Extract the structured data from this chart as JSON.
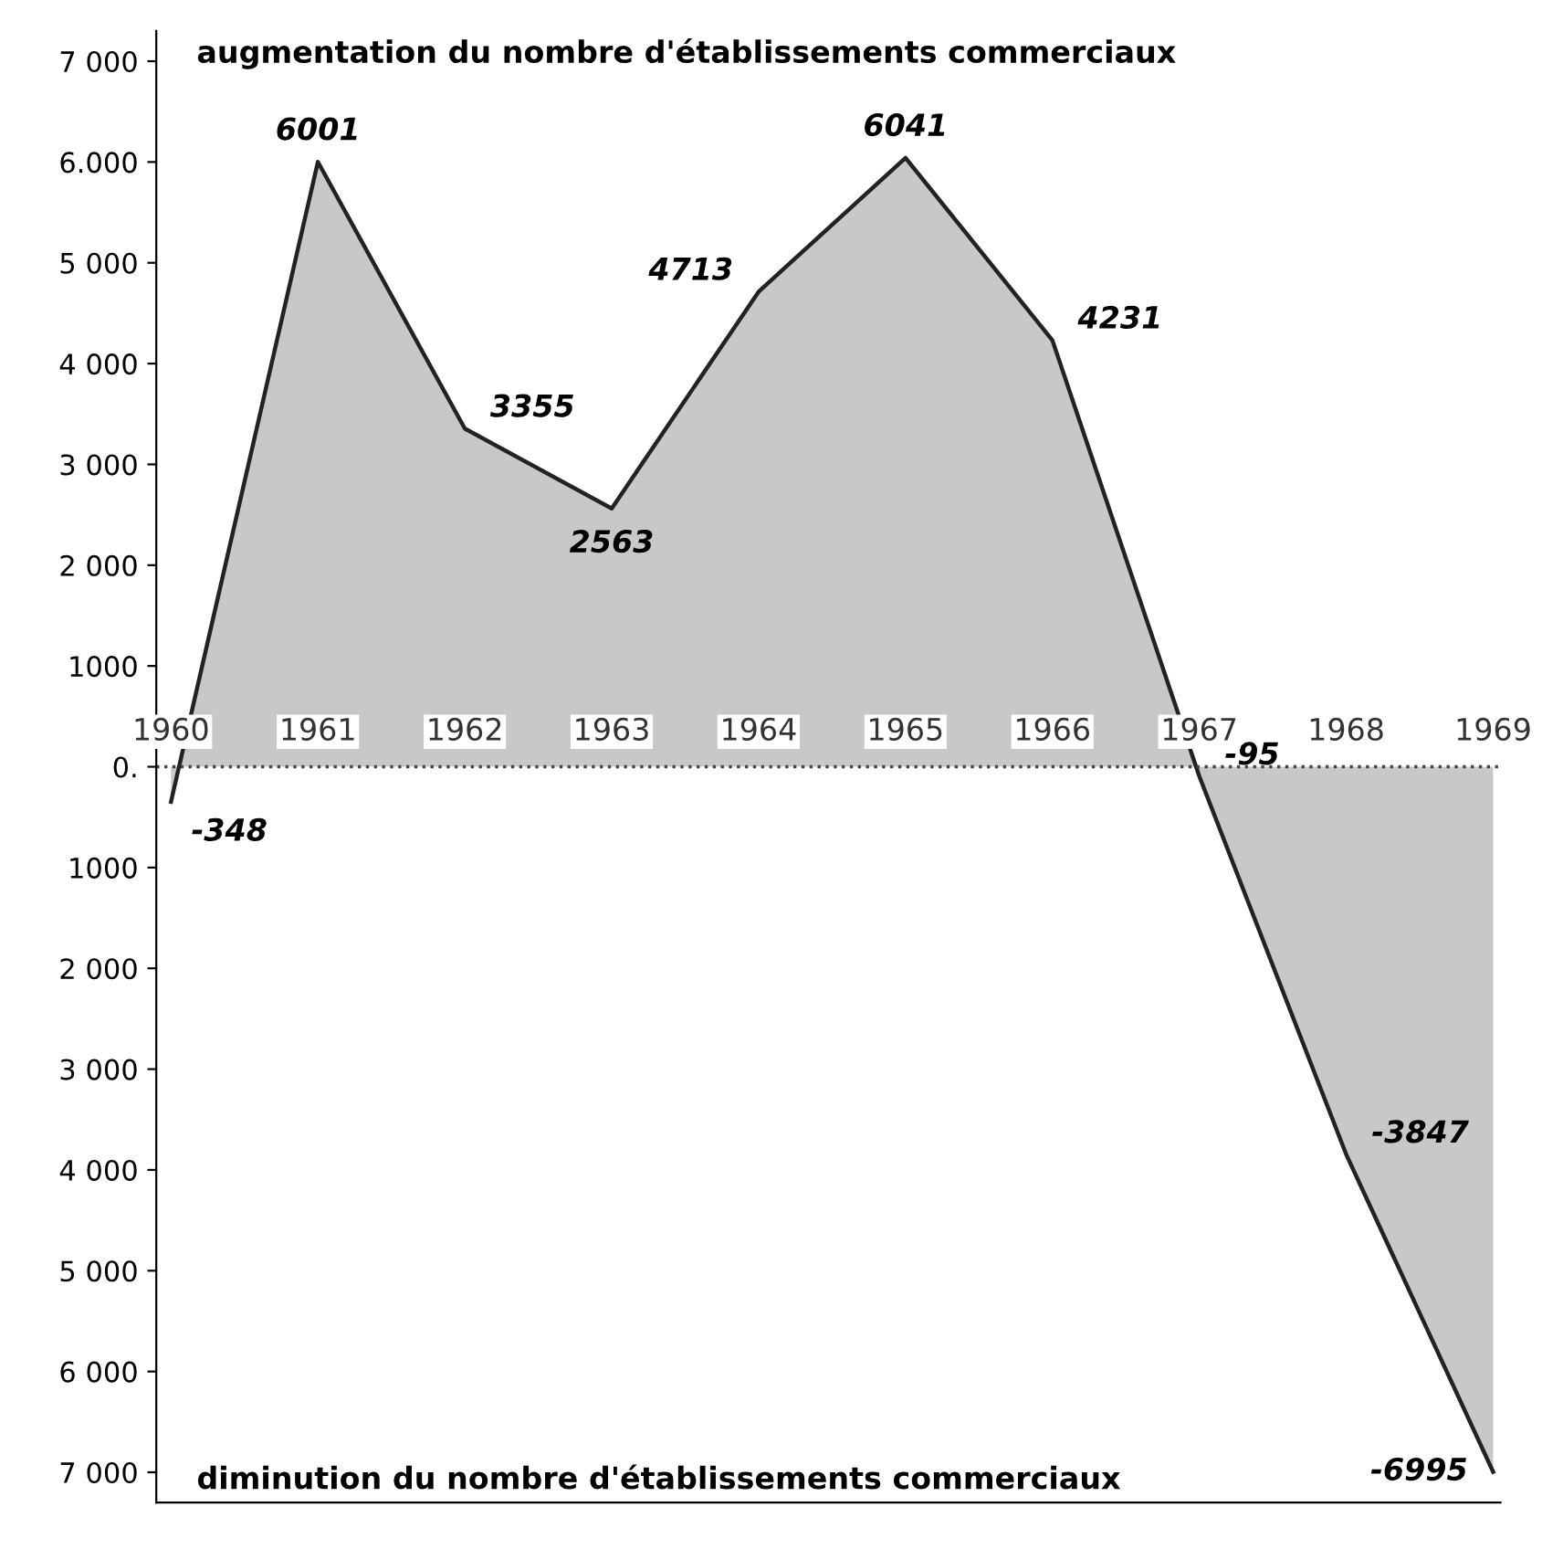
{
  "chart_data": {
    "type": "area",
    "categories": [
      "1960",
      "1961",
      "1962",
      "1963",
      "1964",
      "1965",
      "1966",
      "1967",
      "1968",
      "1969"
    ],
    "series": [
      {
        "color": "#9a9a9a",
        "values": [
          -348,
          6001,
          3355,
          2563,
          4713,
          6041,
          4231,
          -95,
          -3847,
          -6995
        ],
        "value_labels": [
          "-348",
          "6001",
          "3355",
          "2563",
          "4713",
          "6041",
          "4231",
          "-95",
          "-3847",
          "-6995"
        ]
      }
    ],
    "ref_lines": [
      {
        "axis": "y",
        "value": 0,
        "line_style": "dotted",
        "color": "#444444"
      }
    ],
    "ylim": [
      -7300,
      7300
    ],
    "yticks": [
      {
        "value": 7000,
        "label": "7 000"
      },
      {
        "value": 6000,
        "label": "6.000"
      },
      {
        "value": 5000,
        "label": "5 000"
      },
      {
        "value": 4000,
        "label": "4 000"
      },
      {
        "value": 3000,
        "label": "3 000"
      },
      {
        "value": 2000,
        "label": "2 000"
      },
      {
        "value": 1000,
        "label": "1000"
      },
      {
        "value": 0,
        "label": "0."
      },
      {
        "value": -1000,
        "label": "1000"
      },
      {
        "value": -2000,
        "label": "2 000"
      },
      {
        "value": -3000,
        "label": "3 000"
      },
      {
        "value": -4000,
        "label": "4 000"
      },
      {
        "value": -5000,
        "label": "5 000"
      },
      {
        "value": -6000,
        "label": "6 000"
      },
      {
        "value": -7000,
        "label": "7 000"
      }
    ],
    "annotations": [
      "augmentation du nombre d'établissements commerciaux",
      "diminution du nombre d'établissements commerciaux"
    ],
    "grid": false,
    "legend": false,
    "marker": "none",
    "line_style": "solid"
  }
}
